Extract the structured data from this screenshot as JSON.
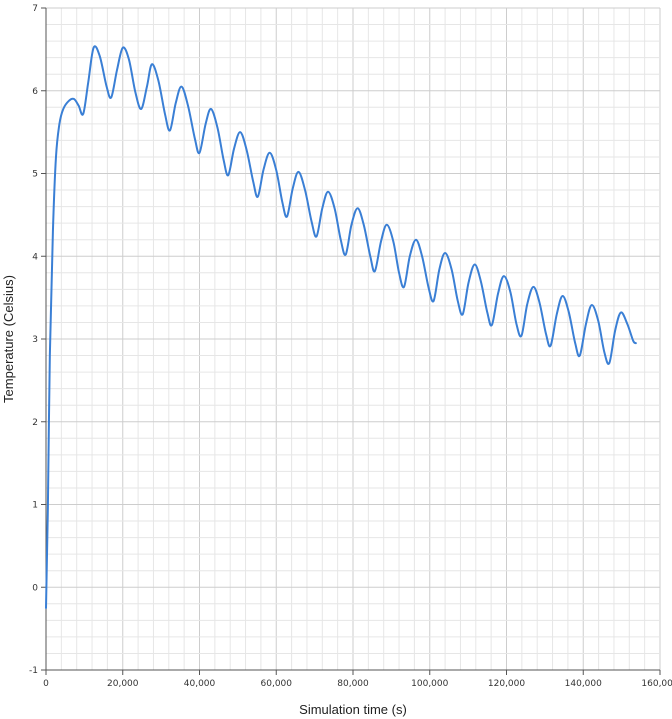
{
  "chart_data": {
    "type": "line",
    "title": "",
    "xlabel": "Simulation time (s)",
    "ylabel": "Temperature (Celsius)",
    "xlim": [
      0,
      160000
    ],
    "ylim": [
      -1,
      7
    ],
    "grid": true,
    "x_ticks": [
      0,
      20000,
      40000,
      60000,
      80000,
      100000,
      120000,
      140000,
      160000
    ],
    "x_tick_labels": [
      "0",
      "20,000",
      "40,000",
      "60,000",
      "80,000",
      "100,000",
      "120,000",
      "140,000",
      "160,000"
    ],
    "y_ticks": [
      -1,
      0,
      1,
      2,
      3,
      4,
      5,
      6,
      7
    ],
    "y_tick_labels": [
      "-1",
      "0",
      "1",
      "2",
      "3",
      "4",
      "5",
      "6",
      "7"
    ],
    "series_color": "#3a7fd5",
    "series": [
      {
        "values_note": "",
        "points": [
          [
            0,
            -0.25
          ],
          [
            500,
            1.0
          ],
          [
            1000,
            2.8
          ],
          [
            1800,
            4.3
          ],
          [
            2600,
            5.2
          ],
          [
            3500,
            5.6
          ],
          [
            4500,
            5.78
          ],
          [
            6000,
            5.88
          ],
          [
            7300,
            5.9
          ],
          [
            8500,
            5.82
          ],
          [
            9700,
            5.72
          ],
          [
            11000,
            6.1
          ],
          [
            12400,
            6.52
          ],
          [
            14000,
            6.42
          ],
          [
            15800,
            6.05
          ],
          [
            17000,
            5.92
          ],
          [
            18500,
            6.25
          ],
          [
            20000,
            6.52
          ],
          [
            21600,
            6.38
          ],
          [
            23300,
            5.98
          ],
          [
            24800,
            5.78
          ],
          [
            26300,
            6.05
          ],
          [
            27600,
            6.32
          ],
          [
            29300,
            6.12
          ],
          [
            31000,
            5.72
          ],
          [
            32300,
            5.52
          ],
          [
            33800,
            5.85
          ],
          [
            35300,
            6.05
          ],
          [
            37000,
            5.82
          ],
          [
            38800,
            5.42
          ],
          [
            40000,
            5.25
          ],
          [
            41600,
            5.6
          ],
          [
            43000,
            5.78
          ],
          [
            44700,
            5.55
          ],
          [
            46300,
            5.16
          ],
          [
            47500,
            4.98
          ],
          [
            49000,
            5.3
          ],
          [
            50600,
            5.5
          ],
          [
            52300,
            5.28
          ],
          [
            54000,
            4.9
          ],
          [
            55200,
            4.72
          ],
          [
            56700,
            5.05
          ],
          [
            58300,
            5.25
          ],
          [
            60000,
            5.04
          ],
          [
            61600,
            4.65
          ],
          [
            62800,
            4.48
          ],
          [
            64300,
            4.82
          ],
          [
            65800,
            5.02
          ],
          [
            67500,
            4.8
          ],
          [
            69200,
            4.42
          ],
          [
            70500,
            4.24
          ],
          [
            72000,
            4.58
          ],
          [
            73500,
            4.78
          ],
          [
            75200,
            4.58
          ],
          [
            76800,
            4.2
          ],
          [
            78100,
            4.02
          ],
          [
            79600,
            4.38
          ],
          [
            81200,
            4.58
          ],
          [
            82800,
            4.38
          ],
          [
            84500,
            4.0
          ],
          [
            85700,
            3.82
          ],
          [
            87300,
            4.18
          ],
          [
            88800,
            4.38
          ],
          [
            90500,
            4.18
          ],
          [
            92000,
            3.8
          ],
          [
            93300,
            3.63
          ],
          [
            94800,
            4.0
          ],
          [
            96400,
            4.2
          ],
          [
            98000,
            4.0
          ],
          [
            99700,
            3.62
          ],
          [
            101000,
            3.46
          ],
          [
            102500,
            3.84
          ],
          [
            104000,
            4.04
          ],
          [
            105700,
            3.84
          ],
          [
            107300,
            3.46
          ],
          [
            108600,
            3.3
          ],
          [
            110100,
            3.68
          ],
          [
            111700,
            3.9
          ],
          [
            113300,
            3.7
          ],
          [
            115000,
            3.32
          ],
          [
            116200,
            3.17
          ],
          [
            117800,
            3.55
          ],
          [
            119300,
            3.76
          ],
          [
            121000,
            3.57
          ],
          [
            122600,
            3.18
          ],
          [
            123900,
            3.04
          ],
          [
            125400,
            3.42
          ],
          [
            127000,
            3.63
          ],
          [
            128600,
            3.44
          ],
          [
            130300,
            3.06
          ],
          [
            131500,
            2.92
          ],
          [
            133100,
            3.3
          ],
          [
            134600,
            3.52
          ],
          [
            136200,
            3.33
          ],
          [
            137900,
            2.95
          ],
          [
            139100,
            2.8
          ],
          [
            140700,
            3.18
          ],
          [
            142200,
            3.41
          ],
          [
            143900,
            3.22
          ],
          [
            145500,
            2.84
          ],
          [
            146800,
            2.71
          ],
          [
            148300,
            3.1
          ],
          [
            149800,
            3.32
          ],
          [
            151500,
            3.18
          ],
          [
            153000,
            2.98
          ],
          [
            153700,
            2.95
          ]
        ]
      }
    ]
  }
}
